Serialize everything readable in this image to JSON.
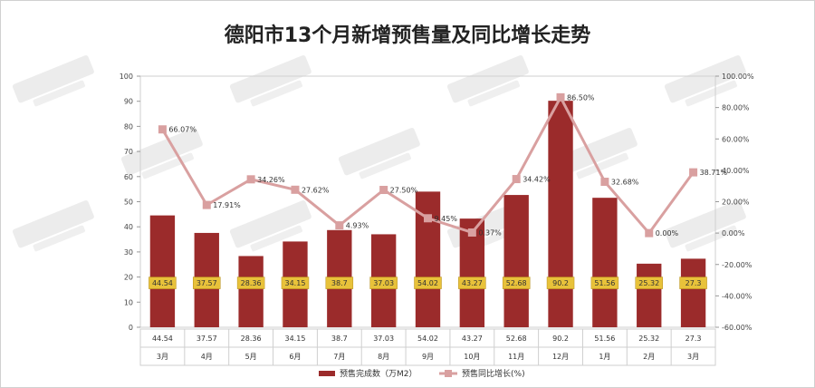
{
  "chart_data": {
    "type": "bar",
    "title": "德阳市13个月新增预售量及同比增长走势",
    "categories": [
      "3月",
      "4月",
      "5月",
      "6月",
      "7月",
      "8月",
      "9月",
      "10月",
      "11月",
      "12月",
      "1月",
      "2月",
      "3月"
    ],
    "series": [
      {
        "name": "预售完成数（万M2）",
        "type": "bar",
        "axis": "left",
        "values": [
          44.54,
          37.57,
          28.36,
          34.15,
          38.7,
          37.03,
          54.02,
          43.27,
          52.68,
          90.2,
          51.56,
          25.32,
          27.3
        ],
        "labels": [
          "44.54",
          "37.57",
          "28.36",
          "34.15",
          "38.7",
          "37.03",
          "54.02",
          "43.27",
          "52.68",
          "90.2",
          "51.56",
          "25.32",
          "27.3"
        ],
        "color": "#9b2b2b"
      },
      {
        "name": "预售同比增长(%)",
        "type": "line",
        "axis": "right",
        "values": [
          66.07,
          17.91,
          34.26,
          27.62,
          4.93,
          27.5,
          9.45,
          0.37,
          34.42,
          86.5,
          32.68,
          0.0,
          38.71
        ],
        "labels": [
          "66.07%",
          "17.91%",
          "34.26%",
          "27.62%",
          "4.93%",
          "27.50%",
          "9.45%",
          "0.37%",
          "34.42%",
          "86.50%",
          "32.68%",
          "0.00%",
          "38.71%"
        ],
        "color": "#d9a0a0"
      }
    ],
    "y_left": {
      "min": 0,
      "max": 100,
      "ticks": [
        "0",
        "10",
        "20",
        "30",
        "40",
        "50",
        "60",
        "70",
        "80",
        "90",
        "100"
      ]
    },
    "y_right": {
      "min": -60,
      "max": 100,
      "ticks": [
        "-60.00%",
        "-40.00%",
        "-20.00%",
        "0.00%",
        "20.00%",
        "40.00%",
        "60.00%",
        "80.00%",
        "100.00%"
      ]
    },
    "legend_position": "bottom"
  },
  "colors": {
    "bar": "#9b2b2b",
    "line": "#d9a0a0",
    "label_box": "#e8c23a"
  }
}
